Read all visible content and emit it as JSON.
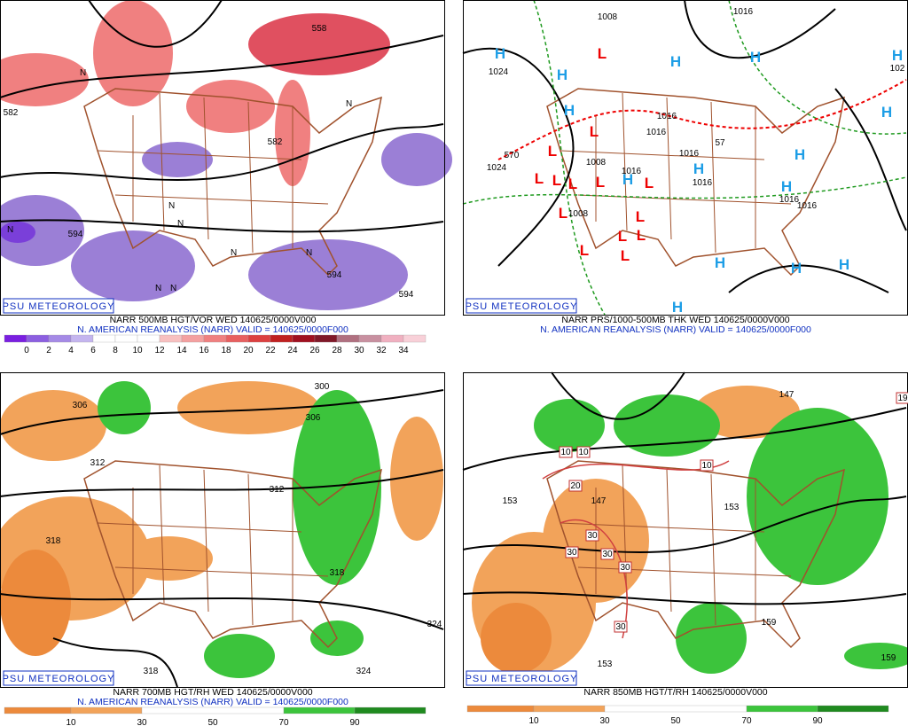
{
  "panels": [
    {
      "credit": "PSU METEOROLOGY",
      "caption": [
        "NARR 500MB HGT/VOR WED 140625/0000V000",
        "N. AMERICAN REANALYSIS (NARR) VALID = 140625/0000F000"
      ],
      "colorbar": [
        0,
        2,
        4,
        6,
        8,
        10,
        12,
        14,
        16,
        18,
        20,
        22,
        24,
        26,
        28,
        30,
        32,
        34
      ],
      "contour_labels": [
        "558",
        "582",
        "582",
        "594",
        "594",
        "594"
      ],
      "symbols": [
        "N",
        "N",
        "N",
        "N",
        "N",
        "N",
        "N",
        "N",
        "N"
      ]
    },
    {
      "credit": "PSU METEOROLOGY",
      "caption": [
        "NARR PRS/1000-500MB THK WED 140625/0000V000",
        "N. AMERICAN REANALYSIS (NARR) VALID = 140625/0000F000"
      ],
      "contour_labels": [
        "1008",
        "1016",
        "1024",
        "1016",
        "1016",
        "1016",
        "1008",
        "1016",
        "1016",
        "1016",
        "1016",
        "1024",
        "570",
        "1008",
        "57",
        "102"
      ],
      "highs": [
        "H",
        "H",
        "H",
        "H",
        "H",
        "H",
        "H",
        "H",
        "H",
        "H",
        "H",
        "H",
        "H",
        "H",
        "H"
      ],
      "lows": [
        "L",
        "L",
        "L",
        "L",
        "L",
        "L",
        "L",
        "L",
        "L",
        "L",
        "L",
        "L",
        "L",
        "L"
      ]
    },
    {
      "credit": "PSU METEOROLOGY",
      "caption": [
        "NARR 700MB HGT/RH WED 140625/0000V000",
        "N. AMERICAN REANALYSIS (NARR) VALID = 140625/0000F000"
      ],
      "colorbar": [
        10,
        30,
        50,
        70,
        90
      ],
      "contour_labels": [
        "306",
        "300",
        "306",
        "312",
        "312",
        "318",
        "318",
        "318",
        "324",
        "324"
      ]
    },
    {
      "credit": "PSU METEOROLOGY",
      "caption": [
        "NARR 850MB HGT/T/RH 140625/0000V000"
      ],
      "colorbar": [
        10,
        30,
        50,
        70,
        90
      ],
      "contour_labels": [
        "147",
        "153",
        "147",
        "153",
        "159",
        "159",
        "153"
      ],
      "boxed_labels": [
        "10",
        "10",
        "10",
        "20",
        "30",
        "30",
        "30",
        "30",
        "30",
        "19"
      ]
    }
  ]
}
